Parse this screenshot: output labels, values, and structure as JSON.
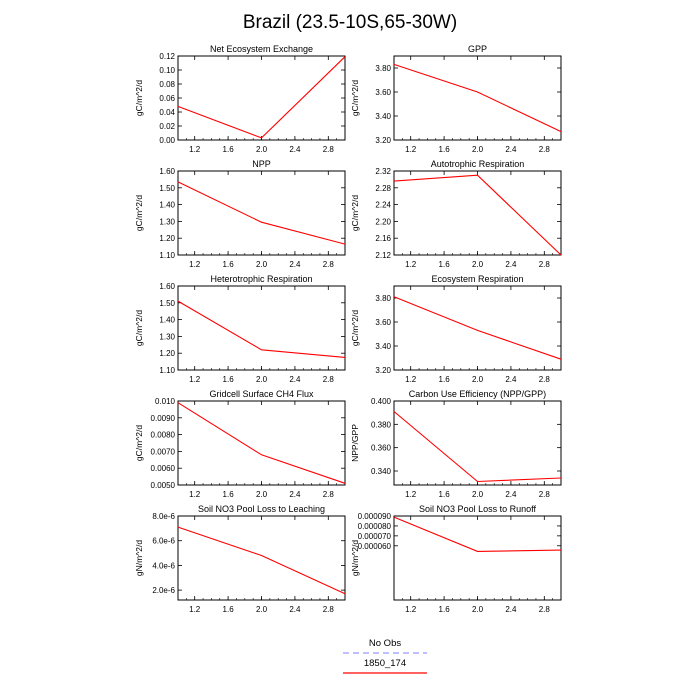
{
  "title": "Brazil (23.5-10S,65-30W)",
  "legend": {
    "items": [
      {
        "label": "No Obs",
        "color": "#9999ff",
        "dash": true
      },
      {
        "label": "1850_174",
        "color": "#ff0000",
        "dash": false
      }
    ]
  },
  "chart_data": [
    {
      "type": "line",
      "title": "Net Ecosystem Exchange",
      "ylabel": "gC/m^2/d",
      "x": [
        1.0,
        2.0,
        3.0
      ],
      "xlim": [
        1.0,
        3.0
      ],
      "xticks": [
        "1.2",
        "1.6",
        "2.0",
        "2.4",
        "2.8"
      ],
      "ylim": [
        0.0,
        0.12
      ],
      "yticks": [
        "0.00",
        "0.02",
        "0.04",
        "0.06",
        "0.08",
        "0.10",
        "0.12"
      ],
      "series": [
        {
          "color": "#ff0000",
          "values": [
            0.048,
            0.003,
            0.119
          ]
        }
      ]
    },
    {
      "type": "line",
      "title": "GPP",
      "ylabel": "gC/m^2/d",
      "x": [
        1.0,
        2.0,
        3.0
      ],
      "xlim": [
        1.0,
        3.0
      ],
      "xticks": [
        "1.2",
        "1.6",
        "2.0",
        "2.4",
        "2.8"
      ],
      "ylim": [
        3.2,
        3.9
      ],
      "yticks": [
        "3.20",
        "3.40",
        "3.60",
        "3.80"
      ],
      "series": [
        {
          "color": "#ff0000",
          "values": [
            3.83,
            3.6,
            3.27
          ]
        }
      ]
    },
    {
      "type": "line",
      "title": "NPP",
      "ylabel": "gC/m^2/d",
      "x": [
        1.0,
        2.0,
        3.0
      ],
      "xlim": [
        1.0,
        3.0
      ],
      "xticks": [
        "1.2",
        "1.6",
        "2.0",
        "2.4",
        "2.8"
      ],
      "ylim": [
        1.1,
        1.6
      ],
      "yticks": [
        "1.10",
        "1.20",
        "1.30",
        "1.40",
        "1.50",
        "1.60"
      ],
      "series": [
        {
          "color": "#ff0000",
          "values": [
            1.535,
            1.295,
            1.165
          ]
        }
      ]
    },
    {
      "type": "line",
      "title": "Autotrophic Respiration",
      "ylabel": "gC/m^2/d",
      "x": [
        1.0,
        2.0,
        3.0
      ],
      "xlim": [
        1.0,
        3.0
      ],
      "xticks": [
        "1.2",
        "1.6",
        "2.0",
        "2.4",
        "2.8"
      ],
      "ylim": [
        2.12,
        2.32
      ],
      "yticks": [
        "2.12",
        "2.16",
        "2.20",
        "2.24",
        "2.28",
        "2.32"
      ],
      "series": [
        {
          "color": "#ff0000",
          "values": [
            2.296,
            2.31,
            2.12
          ]
        }
      ]
    },
    {
      "type": "line",
      "title": "Heterotrophic Respiration",
      "ylabel": "gC/m^2/d",
      "x": [
        1.0,
        2.0,
        3.0
      ],
      "xlim": [
        1.0,
        3.0
      ],
      "xticks": [
        "1.2",
        "1.6",
        "2.0",
        "2.4",
        "2.8"
      ],
      "ylim": [
        1.1,
        1.6
      ],
      "yticks": [
        "1.10",
        "1.20",
        "1.30",
        "1.40",
        "1.50",
        "1.60"
      ],
      "series": [
        {
          "color": "#ff0000",
          "values": [
            1.51,
            1.22,
            1.175
          ]
        }
      ]
    },
    {
      "type": "line",
      "title": "Ecosystem Respiration",
      "ylabel": "gC/m^2/d",
      "x": [
        1.0,
        2.0,
        3.0
      ],
      "xlim": [
        1.0,
        3.0
      ],
      "xticks": [
        "1.2",
        "1.6",
        "2.0",
        "2.4",
        "2.8"
      ],
      "ylim": [
        3.2,
        3.9
      ],
      "yticks": [
        "3.20",
        "3.40",
        "3.60",
        "3.80"
      ],
      "series": [
        {
          "color": "#ff0000",
          "values": [
            3.81,
            3.53,
            3.29
          ]
        }
      ]
    },
    {
      "type": "line",
      "title": "Gridcell Surface CH4 Flux",
      "ylabel": "gC/m^2/d",
      "x": [
        1.0,
        2.0,
        3.0
      ],
      "xlim": [
        1.0,
        3.0
      ],
      "xticks": [
        "1.2",
        "1.6",
        "2.0",
        "2.4",
        "2.8"
      ],
      "ylim": [
        0.005,
        0.01
      ],
      "yticks": [
        "0.0050",
        "0.0060",
        "0.0070",
        "0.0080",
        "0.0090",
        "0.010"
      ],
      "series": [
        {
          "color": "#ff0000",
          "values": [
            0.0099,
            0.0068,
            0.0051
          ]
        }
      ]
    },
    {
      "type": "line",
      "title": "Carbon Use Efficiency (NPP/GPP)",
      "ylabel": "NPP/GPP",
      "x": [
        1.0,
        2.0,
        3.0
      ],
      "xlim": [
        1.0,
        3.0
      ],
      "xticks": [
        "1.2",
        "1.6",
        "2.0",
        "2.4",
        "2.8"
      ],
      "ylim": [
        0.328,
        0.4
      ],
      "yticks": [
        "0.340",
        "0.360",
        "0.380",
        "0.400"
      ],
      "series": [
        {
          "color": "#ff0000",
          "values": [
            0.391,
            0.331,
            0.334
          ]
        }
      ]
    },
    {
      "type": "line",
      "title": "Soil NO3 Pool Loss to Leaching",
      "ylabel": "gN/m^2/d",
      "x": [
        1.0,
        2.0,
        3.0
      ],
      "xlim": [
        1.0,
        3.0
      ],
      "xticks": [
        "1.2",
        "1.6",
        "2.0",
        "2.4",
        "2.8"
      ],
      "ylim": [
        1.2e-06,
        8e-06
      ],
      "yticks": [
        "2.0e-6",
        "4.0e-6",
        "6.0e-6",
        "8.0e-6"
      ],
      "ytick_values": [
        2e-06,
        4e-06,
        6e-06,
        8e-06
      ],
      "series": [
        {
          "color": "#ff0000",
          "values": [
            7.1e-06,
            4.8e-06,
            1.7e-06
          ]
        }
      ]
    },
    {
      "type": "line",
      "title": "Soil NO3 Pool Loss to Runoff",
      "ylabel": "gN/m^2/d",
      "x": [
        1.0,
        2.0,
        3.0
      ],
      "xlim": [
        1.0,
        3.0
      ],
      "xticks": [
        "1.2",
        "1.6",
        "2.0",
        "2.4",
        "2.8"
      ],
      "ylim": [
        5.4e-06,
        9e-05
      ],
      "yticks": [
        "0.000060",
        "0.000070",
        "0.000080",
        "0.000090"
      ],
      "ytick_values": [
        6e-05,
        7e-05,
        8e-05,
        9e-05
      ],
      "series": [
        {
          "color": "#ff0000",
          "values": [
            8.89e-05,
            5.43e-05,
            5.57e-05
          ]
        }
      ]
    }
  ]
}
